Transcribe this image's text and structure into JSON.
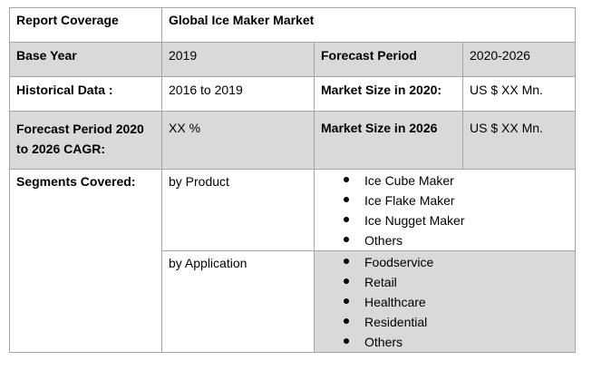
{
  "table": {
    "header": {
      "label": "Report Coverage",
      "value": "Global Ice Maker Market"
    },
    "rows": {
      "base_year": {
        "label": "Base Year",
        "value": "2019",
        "label2": "Forecast Period",
        "value2": "2020-2026"
      },
      "historical": {
        "label": "Historical Data :",
        "value": "2016 to 2019",
        "label2": "Market Size in 2020:",
        "value2": "US $ XX Mn."
      },
      "cagr": {
        "label_line1": "Forecast Period 2020",
        "label_line2": "to 2026 CAGR:",
        "value": "XX %",
        "label2": "Market Size in 2026",
        "value2": "US $ XX Mn."
      }
    },
    "segments": {
      "label": "Segments Covered:",
      "product": {
        "label": "by Product",
        "items": [
          "Ice Cube Maker",
          "Ice Flake Maker",
          "Ice Nugget Maker",
          "Others"
        ]
      },
      "application": {
        "label": "by Application",
        "items": [
          "Foodservice",
          "Retail",
          "Healthcare",
          "Residential",
          "Others"
        ]
      }
    }
  }
}
